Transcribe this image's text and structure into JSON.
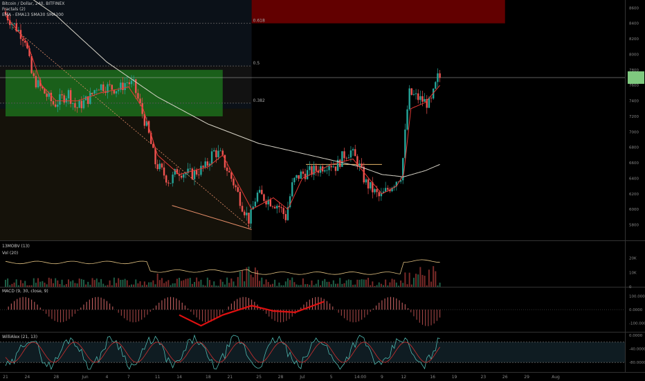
{
  "header": {
    "title": "Bitcoin / Dollar, 240, BITFINEX",
    "fractals": "Fractals (2)",
    "ma": "EMA - EMA13 SMA30 SMA200"
  },
  "panes": {
    "obv": "13MOBV (13)",
    "vol": "Vol (20)",
    "macd": "MACD (9, 30, close, 9)",
    "willr": "WilliAlex (21, 13)"
  },
  "fib_labels": [
    "0.618",
    "0.5",
    "0.382"
  ],
  "colors": {
    "up": "#26a69a",
    "down": "#ef5350",
    "ema": "#e53935",
    "sma200": "#d8d4c8",
    "green_zone": "#1e7a1e",
    "red_zone": "#7a0000"
  },
  "chart_data": [
    {
      "type": "candlestick",
      "title": "Bitcoin / Dollar, 240, BITFINEX",
      "x_ticks": [
        "21",
        "24",
        "28",
        "Jun",
        "4",
        "7",
        "11",
        "14",
        "18",
        "21",
        "25",
        "28",
        "Jul",
        "5",
        "14:00",
        "9",
        "12",
        "16",
        "19",
        "23",
        "26",
        "29",
        "Aug"
      ],
      "y_ticks": [
        8600,
        8400,
        8200,
        8000,
        7800,
        7600,
        7400,
        7200,
        7000,
        6800,
        6600,
        6400,
        6200,
        6000,
        5800,
        5600
      ],
      "ylim": [
        5600,
        8700
      ],
      "price_path": [
        {
          "x": 21,
          "v": 8550
        },
        {
          "x": 24,
          "v": 8200
        },
        {
          "x": 25,
          "v": 7700
        },
        {
          "x": 28,
          "v": 7350
        },
        {
          "x": 30,
          "v": 7500
        },
        {
          "x": 31,
          "v": 7300
        },
        {
          "x": 33,
          "v": 7450
        },
        {
          "x": 34,
          "v": 7600
        },
        {
          "x": 37,
          "v": 7550
        },
        {
          "x": 38,
          "v": 7650
        },
        {
          "x": 39,
          "v": 7600
        },
        {
          "x": 41,
          "v": 7000
        },
        {
          "x": 42,
          "v": 6600
        },
        {
          "x": 44,
          "v": 6350
        },
        {
          "x": 45,
          "v": 6500
        },
        {
          "x": 47,
          "v": 6450
        },
        {
          "x": 49,
          "v": 6550
        },
        {
          "x": 50,
          "v": 6750
        },
        {
          "x": 51,
          "v": 6700
        },
        {
          "x": 53,
          "v": 6300
        },
        {
          "x": 54,
          "v": 6050
        },
        {
          "x": 55,
          "v": 5850
        },
        {
          "x": 56,
          "v": 6200
        },
        {
          "x": 57,
          "v": 6150
        },
        {
          "x": 59,
          "v": 6050
        },
        {
          "x": 60,
          "v": 5900
        },
        {
          "x": 61,
          "v": 6350
        },
        {
          "x": 62,
          "v": 6450
        },
        {
          "x": 64,
          "v": 6500
        },
        {
          "x": 66,
          "v": 6600
        },
        {
          "x": 67,
          "v": 6550
        },
        {
          "x": 68,
          "v": 6700
        },
        {
          "x": 69,
          "v": 6750
        },
        {
          "x": 70,
          "v": 6600
        },
        {
          "x": 71,
          "v": 6350
        },
        {
          "x": 72,
          "v": 6250
        },
        {
          "x": 73,
          "v": 6150
        },
        {
          "x": 74,
          "v": 6250
        },
        {
          "x": 75,
          "v": 6350
        },
        {
          "x": 76,
          "v": 6450
        },
        {
          "x": 77,
          "v": 7500
        },
        {
          "x": 78,
          "v": 7450
        },
        {
          "x": 79,
          "v": 7400
        },
        {
          "x": 80,
          "v": 7350
        },
        {
          "x": 81,
          "v": 7700
        }
      ],
      "ema": [
        {
          "x": 21,
          "v": 8500
        },
        {
          "x": 24,
          "v": 8150
        },
        {
          "x": 26,
          "v": 7600
        },
        {
          "x": 28,
          "v": 7400
        },
        {
          "x": 31,
          "v": 7400
        },
        {
          "x": 34,
          "v": 7500
        },
        {
          "x": 38,
          "v": 7580
        },
        {
          "x": 40,
          "v": 7300
        },
        {
          "x": 42,
          "v": 6700
        },
        {
          "x": 45,
          "v": 6450
        },
        {
          "x": 49,
          "v": 6550
        },
        {
          "x": 51,
          "v": 6700
        },
        {
          "x": 53,
          "v": 6350
        },
        {
          "x": 55,
          "v": 6000
        },
        {
          "x": 58,
          "v": 6150
        },
        {
          "x": 60,
          "v": 6000
        },
        {
          "x": 62,
          "v": 6400
        },
        {
          "x": 66,
          "v": 6580
        },
        {
          "x": 69,
          "v": 6650
        },
        {
          "x": 71,
          "v": 6420
        },
        {
          "x": 73,
          "v": 6200
        },
        {
          "x": 75,
          "v": 6300
        },
        {
          "x": 76,
          "v": 6450
        },
        {
          "x": 77,
          "v": 7300
        },
        {
          "x": 79,
          "v": 7380
        },
        {
          "x": 81,
          "v": 7600
        }
      ],
      "sma200": [
        {
          "x": 21,
          "v": 8950
        },
        {
          "x": 28,
          "v": 8500
        },
        {
          "x": 35,
          "v": 7900
        },
        {
          "x": 42,
          "v": 7450
        },
        {
          "x": 49,
          "v": 7100
        },
        {
          "x": 56,
          "v": 6850
        },
        {
          "x": 63,
          "v": 6700
        },
        {
          "x": 70,
          "v": 6550
        },
        {
          "x": 73,
          "v": 6450
        },
        {
          "x": 76,
          "v": 6420
        },
        {
          "x": 79,
          "v": 6500
        },
        {
          "x": 81,
          "v": 6580
        }
      ],
      "fib_levels": [
        {
          "label": "0.618",
          "v": 8400
        },
        {
          "label": "0.5",
          "v": 7850
        },
        {
          "label": "0.382",
          "v": 7370
        }
      ],
      "zones": [
        {
          "name": "green",
          "from_x": 21,
          "to_x": 51,
          "vmin": 7200,
          "vmax": 7800
        },
        {
          "name": "red",
          "from_x": 55,
          "to_x": 90,
          "vmin": 8400,
          "vmax": 9000
        }
      ],
      "current_price": 7700
    },
    {
      "type": "bar",
      "title": "Vol (20)",
      "y_ticks": [
        "20K",
        "10K",
        "0"
      ],
      "ylim": [
        0,
        30000
      ]
    },
    {
      "type": "bar",
      "title": "MACD (9, 30, close, 9)",
      "y_ticks": [
        "100.0000",
        "0.0000",
        "-100.0000"
      ],
      "ylim": [
        -150,
        150
      ]
    },
    {
      "type": "line",
      "title": "WilliAlex (21, 13)",
      "y_ticks": [
        "0.0000",
        "-40.0000",
        "-80.0000"
      ],
      "ylim": [
        -100,
        0
      ]
    }
  ]
}
